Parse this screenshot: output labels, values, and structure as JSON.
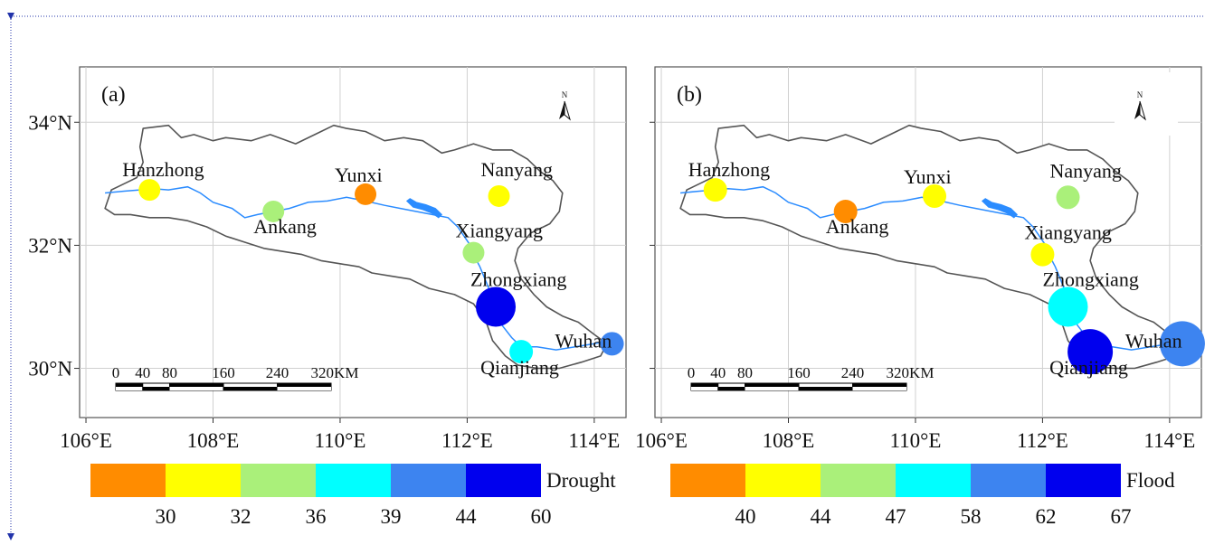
{
  "axes": {
    "lat_labels": [
      "34°N",
      "32°N",
      "30°N"
    ],
    "lon_labels": [
      "106°E",
      "108°E",
      "110°E",
      "112°E",
      "114°E"
    ],
    "lat_values": [
      34,
      32,
      30
    ],
    "lon_values": [
      106,
      108,
      110,
      112,
      114
    ],
    "lon_range": [
      105.9,
      114.5
    ],
    "lat_range": [
      29.2,
      34.9
    ]
  },
  "scale_bar": {
    "ticks": [
      "0",
      "40",
      "80",
      "160",
      "240",
      "320KM"
    ],
    "km": [
      0,
      40,
      80,
      160,
      240,
      320
    ]
  },
  "north_arrow": {
    "label": "N",
    "icon": "north-arrow-icon"
  },
  "colors": [
    "#ff8c00",
    "#ffff00",
    "#aaf07a",
    "#00ffff",
    "#3d84f0",
    "#0000ee"
  ],
  "panels": [
    {
      "label": "(a)",
      "legend_title": "Drought",
      "legend_breaks": [
        "30",
        "32",
        "36",
        "39",
        "44",
        "60"
      ],
      "stations": [
        {
          "name": "Hanzhong",
          "lon": 107.0,
          "lat": 32.9,
          "class": 1,
          "size": 1
        },
        {
          "name": "Ankang",
          "lon": 108.95,
          "lat": 32.55,
          "class": 2,
          "size": 1
        },
        {
          "name": "Yunxi",
          "lon": 110.4,
          "lat": 32.83,
          "class": 0,
          "size": 1
        },
        {
          "name": "Nanyang",
          "lon": 112.5,
          "lat": 32.8,
          "class": 1,
          "size": 1
        },
        {
          "name": "Xiangyang",
          "lon": 112.1,
          "lat": 31.88,
          "class": 2,
          "size": 1
        },
        {
          "name": "Zhongxiang",
          "lon": 112.45,
          "lat": 31.0,
          "class": 5,
          "size": 3
        },
        {
          "name": "Qianjiang",
          "lon": 112.85,
          "lat": 30.27,
          "class": 3,
          "size": 2
        },
        {
          "name": "Wuhan",
          "lon": 114.28,
          "lat": 30.4,
          "class": 4,
          "size": 2
        }
      ]
    },
    {
      "label": "(b)",
      "legend_title": "Flood",
      "legend_breaks": [
        "40",
        "44",
        "47",
        "58",
        "62",
        "67"
      ],
      "stations": [
        {
          "name": "Hanzhong",
          "lon": 106.85,
          "lat": 32.9,
          "class": 1,
          "size": 2
        },
        {
          "name": "Ankang",
          "lon": 108.9,
          "lat": 32.55,
          "class": 0,
          "size": 2
        },
        {
          "name": "Yunxi",
          "lon": 110.3,
          "lat": 32.8,
          "class": 1,
          "size": 2
        },
        {
          "name": "Nanyang",
          "lon": 112.4,
          "lat": 32.78,
          "class": 2,
          "size": 2
        },
        {
          "name": "Xiangyang",
          "lon": 112.0,
          "lat": 31.85,
          "class": 1,
          "size": 2
        },
        {
          "name": "Zhongxiang",
          "lon": 112.4,
          "lat": 31.0,
          "class": 3,
          "size": 3
        },
        {
          "name": "Qianjiang",
          "lon": 112.75,
          "lat": 30.27,
          "class": 5,
          "size": 4
        },
        {
          "name": "Wuhan",
          "lon": 114.2,
          "lat": 30.4,
          "class": 4,
          "size": 4
        }
      ]
    }
  ]
}
